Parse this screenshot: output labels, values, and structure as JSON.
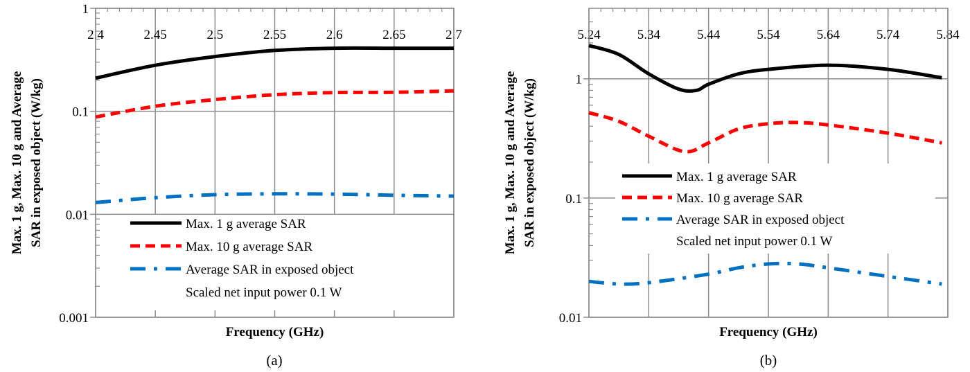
{
  "chart_data": [
    {
      "type": "line",
      "caption": "(a)",
      "xlabel": "Frequency (GHz)",
      "ylabel_lines": [
        "Max. 1 g, Max. 10 g and Average",
        "SAR in exposed object (W/kg)"
      ],
      "xlim": [
        2.4,
        2.7
      ],
      "ylim": [
        0.001,
        1
      ],
      "yscale": "log",
      "grid": true,
      "x_axis_position": "top",
      "xticks": [
        "2.4",
        "2.45",
        "2.5",
        "2.55",
        "2.6",
        "2.65",
        "2.7"
      ],
      "yticks": [
        "1",
        "0.1",
        "0.01",
        "0.001"
      ],
      "legend": {
        "placement": "bottom-right",
        "note": "Scaled net input power 0.1 W"
      },
      "series": [
        {
          "name": "Max. 1 g average SAR",
          "color": "#000000",
          "style": "solid",
          "x": [
            2.4,
            2.45,
            2.5,
            2.55,
            2.6,
            2.65,
            2.7
          ],
          "y": [
            0.21,
            0.28,
            0.34,
            0.39,
            0.41,
            0.41,
            0.41
          ]
        },
        {
          "name": "Max. 10 g average SAR",
          "color": "#ff0000",
          "style": "dash",
          "x": [
            2.4,
            2.45,
            2.5,
            2.55,
            2.6,
            2.65,
            2.7
          ],
          "y": [
            0.088,
            0.112,
            0.13,
            0.145,
            0.152,
            0.153,
            0.158
          ]
        },
        {
          "name": "Average SAR in exposed object",
          "color": "#0070c0",
          "style": "dashdot",
          "x": [
            2.4,
            2.45,
            2.5,
            2.55,
            2.6,
            2.65,
            2.7
          ],
          "y": [
            0.013,
            0.0145,
            0.0155,
            0.0158,
            0.0157,
            0.0153,
            0.015
          ]
        }
      ]
    },
    {
      "type": "line",
      "caption": "(b)",
      "xlabel": "Frequency (GHz)",
      "ylabel_lines": [
        "Max. 1 g, Max. 10 g and Average",
        "SAR in exposed object (W/kg)"
      ],
      "xlim": [
        5.24,
        5.84
      ],
      "ylim": [
        0.01,
        3.9
      ],
      "yscale": "log",
      "grid": true,
      "x_axis_position": "top",
      "xticks": [
        "5.24",
        "5.34",
        "5.44",
        "5.54",
        "5.64",
        "5.74",
        "5.84"
      ],
      "yticks": [
        "1",
        "0.1",
        "0.01"
      ],
      "legend": {
        "placement": "center",
        "note": "Scaled net input power 0.1 W"
      },
      "series": [
        {
          "name": "Max. 1 g average SAR",
          "color": "#000000",
          "style": "solid",
          "x": [
            5.24,
            5.29,
            5.34,
            5.39,
            5.42,
            5.44,
            5.49,
            5.54,
            5.64,
            5.74,
            5.83
          ],
          "y": [
            1.9,
            1.6,
            1.1,
            0.82,
            0.8,
            0.9,
            1.1,
            1.2,
            1.3,
            1.2,
            1.02
          ]
        },
        {
          "name": "Max. 10 g average SAR",
          "color": "#ff0000",
          "style": "dash",
          "x": [
            5.24,
            5.29,
            5.34,
            5.4,
            5.44,
            5.49,
            5.54,
            5.59,
            5.64,
            5.74,
            5.83
          ],
          "y": [
            0.52,
            0.44,
            0.33,
            0.245,
            0.29,
            0.38,
            0.42,
            0.43,
            0.41,
            0.35,
            0.29
          ]
        },
        {
          "name": "Average SAR in exposed object",
          "color": "#0070c0",
          "style": "dashdot",
          "x": [
            5.24,
            5.29,
            5.34,
            5.44,
            5.49,
            5.54,
            5.59,
            5.64,
            5.74,
            5.83
          ],
          "y": [
            0.02,
            0.019,
            0.0195,
            0.023,
            0.026,
            0.028,
            0.028,
            0.026,
            0.022,
            0.019
          ]
        }
      ]
    }
  ]
}
